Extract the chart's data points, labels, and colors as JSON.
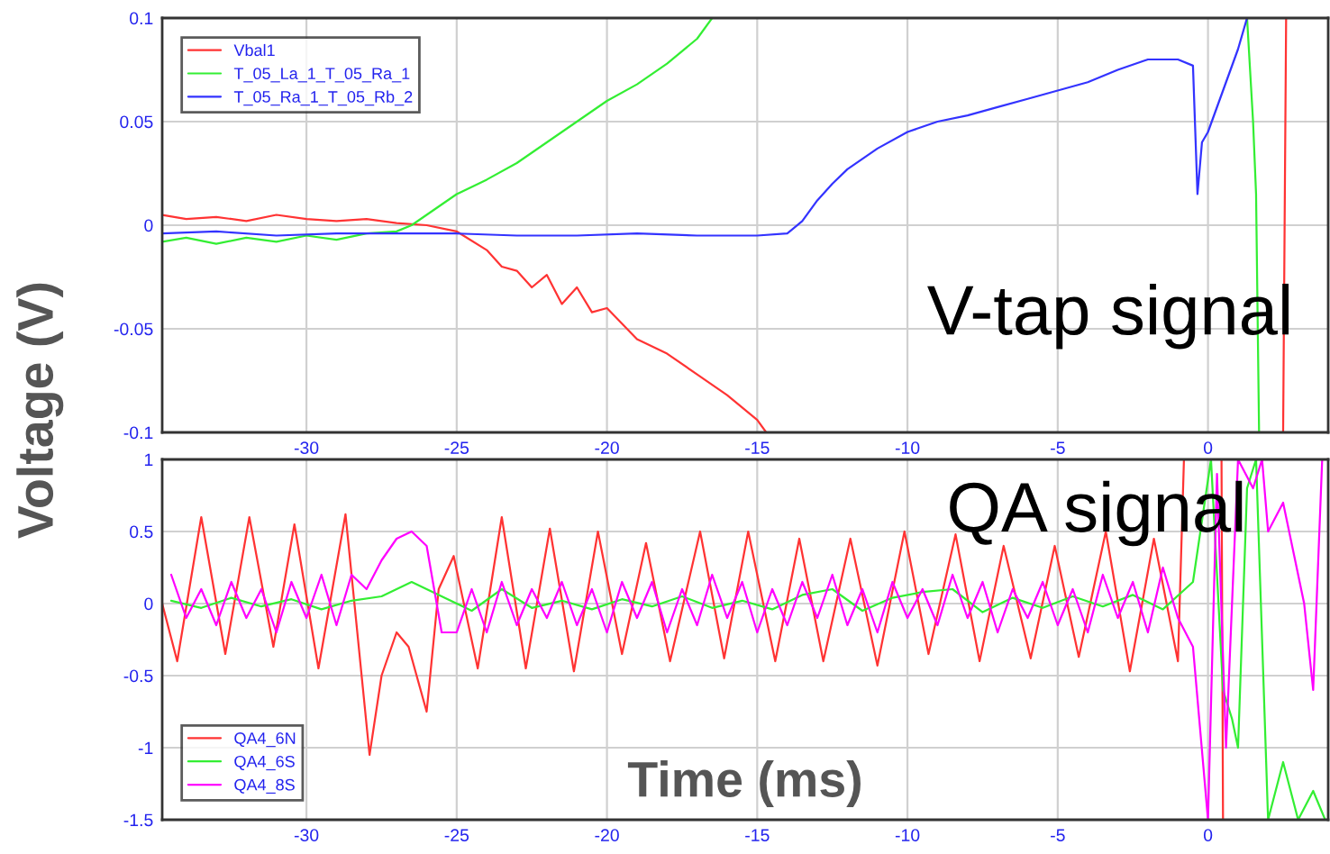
{
  "chart_data": [
    {
      "type": "line",
      "ylabel": "Voltage (V)",
      "annotations": [
        "V-tap signal"
      ],
      "xlim": [
        -34.8,
        4
      ],
      "xticks": [
        -30,
        -25,
        -20,
        -15,
        -10,
        -5,
        0
      ],
      "ylim": [
        -0.1,
        0.1
      ],
      "yticks": [
        -0.1,
        -0.05,
        0,
        0.05,
        0.1
      ],
      "grid": true,
      "legend": "top left",
      "marker": "none",
      "line_style": "solid",
      "series": [
        {
          "name": "Vbal1",
          "color": "#ff3333",
          "x": [
            -34.8,
            -34,
            -33,
            -32,
            -31,
            -30,
            -29,
            -28,
            -27,
            -26,
            -25,
            -24,
            -23.5,
            -23,
            -22.5,
            -22,
            -21.5,
            -21,
            -20.5,
            -20,
            -19,
            -18,
            -17,
            -16,
            -15,
            -14.7,
            2.4,
            2.5,
            2.6
          ],
          "values": [
            0.005,
            0.003,
            0.004,
            0.002,
            0.005,
            0.003,
            0.002,
            0.003,
            0.001,
            0.0,
            -0.003,
            -0.012,
            -0.02,
            -0.022,
            -0.03,
            -0.024,
            -0.038,
            -0.03,
            -0.042,
            -0.04,
            -0.055,
            -0.062,
            -0.072,
            -0.082,
            -0.094,
            -0.1,
            null,
            -0.1,
            0.1
          ]
        },
        {
          "name": "T_05_La_1_T_05_Ra_1",
          "color": "#33ee33",
          "x": [
            -34.8,
            -34,
            -33,
            -32,
            -31,
            -30,
            -29,
            -28,
            -27,
            -26.5,
            -26,
            -25.5,
            -25,
            -24,
            -23,
            -22,
            -21,
            -20,
            -19,
            -18,
            -17,
            -16.5,
            1.2,
            1.3,
            1.5,
            1.6,
            1.7
          ],
          "values": [
            -0.008,
            -0.006,
            -0.009,
            -0.006,
            -0.008,
            -0.005,
            -0.007,
            -0.004,
            -0.003,
            0.0,
            0.005,
            0.01,
            0.015,
            0.022,
            0.03,
            0.04,
            0.05,
            0.06,
            0.068,
            0.078,
            0.09,
            0.1,
            null,
            0.1,
            0.05,
            0.015,
            -0.1
          ]
        },
        {
          "name": "T_05_Ra_1_T_05_Rb_2",
          "color": "#3333ff",
          "x": [
            -34.8,
            -33,
            -31,
            -29,
            -27,
            -25,
            -23,
            -21,
            -19,
            -17,
            -15,
            -14,
            -13.5,
            -13,
            -12.5,
            -12,
            -11,
            -10,
            -9,
            -8,
            -7,
            -6,
            -5,
            -4,
            -3,
            -2,
            -1,
            -0.5,
            -0.35,
            -0.2,
            0,
            0.5,
            1,
            1.3
          ],
          "values": [
            -0.004,
            -0.003,
            -0.005,
            -0.004,
            -0.004,
            -0.004,
            -0.005,
            -0.005,
            -0.004,
            -0.005,
            -0.005,
            -0.004,
            0.002,
            0.012,
            0.02,
            0.027,
            0.037,
            0.045,
            0.05,
            0.053,
            0.057,
            0.061,
            0.065,
            0.069,
            0.075,
            0.08,
            0.08,
            0.077,
            0.015,
            0.04,
            0.045,
            0.065,
            0.085,
            0.1
          ]
        }
      ]
    },
    {
      "type": "line",
      "xlabel": "Time (ms)",
      "annotations": [
        "QA signal"
      ],
      "xlim": [
        -34.8,
        4
      ],
      "xticks": [
        -30,
        -25,
        -20,
        -15,
        -10,
        -5,
        0
      ],
      "ylim": [
        -1.5,
        1
      ],
      "yticks": [
        -1.5,
        -1,
        -0.5,
        0,
        0.5,
        1
      ],
      "grid": true,
      "legend": "bottom left",
      "marker": "none",
      "line_style": "solid",
      "series": [
        {
          "name": "QA4_6N",
          "color": "#ff3333",
          "x": [
            -34.8,
            -34.3,
            -33.5,
            -32.7,
            -31.9,
            -31.1,
            -30.4,
            -29.6,
            -28.7,
            -27.9,
            -27.5,
            -27.0,
            -26.6,
            -26.0,
            -25.6,
            -25.1,
            -24.3,
            -23.5,
            -22.7,
            -21.9,
            -21.1,
            -20.3,
            -19.5,
            -18.7,
            -17.9,
            -16.9,
            -16.1,
            -15.3,
            -14.4,
            -13.6,
            -12.8,
            -11.9,
            -11.0,
            -10.1,
            -9.3,
            -8.4,
            -7.6,
            -6.8,
            -5.9,
            -5.1,
            -4.3,
            -3.4,
            -2.6,
            -1.8,
            -1.0,
            -0.8,
            0.45,
            0.5
          ],
          "values": [
            0.0,
            -0.4,
            0.6,
            -0.35,
            0.6,
            -0.3,
            0.55,
            -0.45,
            0.62,
            -1.05,
            -0.5,
            -0.2,
            -0.3,
            -0.75,
            0.1,
            0.33,
            -0.45,
            0.6,
            -0.45,
            0.52,
            -0.47,
            0.5,
            -0.35,
            0.42,
            -0.4,
            0.5,
            -0.38,
            0.5,
            -0.4,
            0.45,
            -0.4,
            0.45,
            -0.43,
            0.5,
            -0.35,
            0.48,
            -0.4,
            0.4,
            -0.38,
            0.4,
            -0.37,
            0.5,
            -0.47,
            0.45,
            -0.4,
            1.0,
            1.0,
            -1.5
          ]
        },
        {
          "name": "QA4_6S",
          "color": "#33ee33",
          "x": [
            -34.5,
            -33.5,
            -32.5,
            -31.5,
            -30.5,
            -29.5,
            -28.5,
            -27.5,
            -26.5,
            -25.5,
            -24.5,
            -23.5,
            -22.5,
            -21.5,
            -20.5,
            -19.5,
            -18.5,
            -17.5,
            -16.5,
            -15.5,
            -14.5,
            -13.5,
            -12.5,
            -11.5,
            -10.5,
            -9.5,
            -8.5,
            -7.5,
            -6.5,
            -5.5,
            -4.5,
            -3.5,
            -2.5,
            -1.5,
            -0.5,
            0.1,
            0.5,
            0.8,
            1.0,
            1.3,
            1.6,
            2.0,
            2.5,
            3.0,
            3.5,
            3.9
          ],
          "values": [
            0.02,
            -0.03,
            0.04,
            -0.02,
            0.03,
            -0.04,
            0.02,
            0.05,
            0.15,
            0.05,
            -0.05,
            0.1,
            -0.03,
            0.02,
            -0.04,
            0.03,
            -0.02,
            0.05,
            -0.03,
            0.02,
            -0.04,
            0.06,
            0.1,
            -0.05,
            0.04,
            0.08,
            0.1,
            -0.06,
            0.04,
            -0.03,
            0.05,
            -0.02,
            0.06,
            -0.04,
            0.15,
            1.0,
            -0.6,
            -0.8,
            -1.0,
            0.8,
            1.0,
            -1.5,
            -1.1,
            -1.5,
            -1.3,
            -1.5
          ]
        },
        {
          "name": "QA4_8S",
          "color": "#ff00ff",
          "x": [
            -34.5,
            -34,
            -33.5,
            -33,
            -32.5,
            -32,
            -31.5,
            -31,
            -30.5,
            -30,
            -29.5,
            -29,
            -28.5,
            -28,
            -27.5,
            -27,
            -26.5,
            -26,
            -25.5,
            -25,
            -24.5,
            -24,
            -23.5,
            -23,
            -22.5,
            -22,
            -21.5,
            -21,
            -20.5,
            -20,
            -19.5,
            -19,
            -18.5,
            -18,
            -17.5,
            -17,
            -16.5,
            -16,
            -15.5,
            -15,
            -14.5,
            -14,
            -13.5,
            -13,
            -12.5,
            -12,
            -11.5,
            -11,
            -10.5,
            -10,
            -9.5,
            -9,
            -8.5,
            -8,
            -7.5,
            -7,
            -6.5,
            -6,
            -5.5,
            -5,
            -4.5,
            -4,
            -3.5,
            -3,
            -2.5,
            -2,
            -1.5,
            -1,
            -0.5,
            0,
            0.3,
            0.6,
            1.0,
            1.5,
            1.8,
            2.0,
            2.5,
            3.2,
            3.5,
            3.8
          ],
          "values": [
            0.2,
            -0.1,
            0.1,
            -0.15,
            0.15,
            -0.1,
            0.1,
            -0.2,
            0.15,
            -0.1,
            0.2,
            -0.15,
            0.2,
            0.1,
            0.3,
            0.45,
            0.5,
            0.4,
            -0.2,
            -0.2,
            0.1,
            -0.2,
            0.15,
            -0.15,
            0.1,
            -0.1,
            0.15,
            -0.15,
            0.1,
            -0.2,
            0.15,
            -0.1,
            0.15,
            -0.2,
            0.1,
            -0.15,
            0.2,
            -0.1,
            0.15,
            -0.2,
            0.1,
            -0.15,
            0.15,
            -0.1,
            0.2,
            -0.15,
            0.1,
            -0.2,
            0.15,
            -0.1,
            0.1,
            -0.15,
            0.2,
            -0.1,
            0.15,
            -0.2,
            0.1,
            -0.1,
            0.15,
            -0.15,
            0.1,
            -0.2,
            0.2,
            -0.1,
            0.15,
            -0.2,
            0.25,
            -0.1,
            -0.3,
            -1.5,
            0.9,
            -1.0,
            1.0,
            0.8,
            1.0,
            0.5,
            0.7,
            0.0,
            -0.6,
            1.0
          ]
        }
      ]
    }
  ]
}
